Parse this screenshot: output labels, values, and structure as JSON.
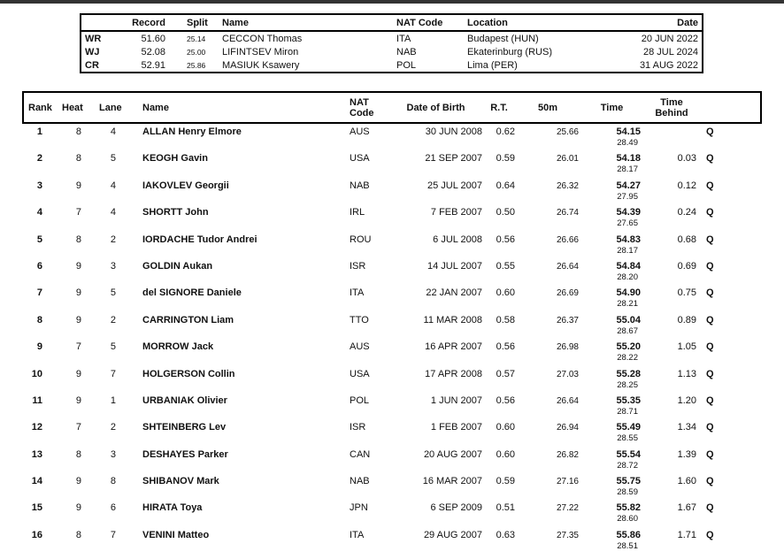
{
  "colors": {
    "top_bar": "#333333",
    "border": "#000000",
    "text": "#111111",
    "background": "#ffffff"
  },
  "records": {
    "headers": {
      "record": "Record",
      "split": "Split",
      "name": "Name",
      "nat": "NAT Code",
      "location": "Location",
      "date": "Date"
    },
    "rows": [
      {
        "tag": "WR",
        "record": "51.60",
        "split": "25.14",
        "name": "CECCON Thomas",
        "nat": "ITA",
        "location": "Budapest (HUN)",
        "date": "20 JUN 2022"
      },
      {
        "tag": "WJ",
        "record": "52.08",
        "split": "25.00",
        "name": "LIFINTSEV Miron",
        "nat": "NAB",
        "location": "Ekaterinburg (RUS)",
        "date": "28 JUL 2024"
      },
      {
        "tag": "CR",
        "record": "52.91",
        "split": "25.86",
        "name": "MASIUK Ksawery",
        "nat": "POL",
        "location": "Lima (PER)",
        "date": "31 AUG 2022"
      }
    ]
  },
  "results": {
    "headers": {
      "rank": "Rank",
      "heat": "Heat",
      "lane": "Lane",
      "name": "Name",
      "nat": "NAT\nCode",
      "dob": "Date of Birth",
      "rt": "R.T.",
      "m50": "50m",
      "time": "Time",
      "behind": "Time\nBehind"
    },
    "rows": [
      {
        "rank": "1",
        "heat": "8",
        "lane": "4",
        "name": "ALLAN Henry Elmore",
        "nat": "AUS",
        "dob": "30 JUN 2008",
        "rt": "0.62",
        "m50": "25.66",
        "time": "54.15",
        "sub": "28.49",
        "behind": "",
        "q": "Q"
      },
      {
        "rank": "2",
        "heat": "8",
        "lane": "5",
        "name": "KEOGH Gavin",
        "nat": "USA",
        "dob": "21 SEP 2007",
        "rt": "0.59",
        "m50": "26.01",
        "time": "54.18",
        "sub": "28.17",
        "behind": "0.03",
        "q": "Q"
      },
      {
        "rank": "3",
        "heat": "9",
        "lane": "4",
        "name": "IAKOVLEV Georgii",
        "nat": "NAB",
        "dob": "25 JUL 2007",
        "rt": "0.64",
        "m50": "26.32",
        "time": "54.27",
        "sub": "27.95",
        "behind": "0.12",
        "q": "Q"
      },
      {
        "rank": "4",
        "heat": "7",
        "lane": "4",
        "name": "SHORTT John",
        "nat": "IRL",
        "dob": "7 FEB 2007",
        "rt": "0.50",
        "m50": "26.74",
        "time": "54.39",
        "sub": "27.65",
        "behind": "0.24",
        "q": "Q"
      },
      {
        "rank": "5",
        "heat": "8",
        "lane": "2",
        "name": "IORDACHE Tudor Andrei",
        "nat": "ROU",
        "dob": "6 JUL 2008",
        "rt": "0.56",
        "m50": "26.66",
        "time": "54.83",
        "sub": "28.17",
        "behind": "0.68",
        "q": "Q"
      },
      {
        "rank": "6",
        "heat": "9",
        "lane": "3",
        "name": "GOLDIN Aukan",
        "nat": "ISR",
        "dob": "14 JUL 2007",
        "rt": "0.55",
        "m50": "26.64",
        "time": "54.84",
        "sub": "28.20",
        "behind": "0.69",
        "q": "Q"
      },
      {
        "rank": "7",
        "heat": "9",
        "lane": "5",
        "name": "del SIGNORE Daniele",
        "nat": "ITA",
        "dob": "22 JAN 2007",
        "rt": "0.60",
        "m50": "26.69",
        "time": "54.90",
        "sub": "28.21",
        "behind": "0.75",
        "q": "Q"
      },
      {
        "rank": "8",
        "heat": "9",
        "lane": "2",
        "name": "CARRINGTON Liam",
        "nat": "TTO",
        "dob": "11 MAR 2008",
        "rt": "0.58",
        "m50": "26.37",
        "time": "55.04",
        "sub": "28.67",
        "behind": "0.89",
        "q": "Q"
      },
      {
        "rank": "9",
        "heat": "7",
        "lane": "5",
        "name": "MORROW Jack",
        "nat": "AUS",
        "dob": "16 APR 2007",
        "rt": "0.56",
        "m50": "26.98",
        "time": "55.20",
        "sub": "28.22",
        "behind": "1.05",
        "q": "Q"
      },
      {
        "rank": "10",
        "heat": "9",
        "lane": "7",
        "name": "HOLGERSON Collin",
        "nat": "USA",
        "dob": "17 APR 2008",
        "rt": "0.57",
        "m50": "27.03",
        "time": "55.28",
        "sub": "28.25",
        "behind": "1.13",
        "q": "Q"
      },
      {
        "rank": "11",
        "heat": "9",
        "lane": "1",
        "name": "URBANIAK Olivier",
        "nat": "POL",
        "dob": "1 JUN 2007",
        "rt": "0.56",
        "m50": "26.64",
        "time": "55.35",
        "sub": "28.71",
        "behind": "1.20",
        "q": "Q"
      },
      {
        "rank": "12",
        "heat": "7",
        "lane": "2",
        "name": "SHTEINBERG Lev",
        "nat": "ISR",
        "dob": "1 FEB 2007",
        "rt": "0.60",
        "m50": "26.94",
        "time": "55.49",
        "sub": "28.55",
        "behind": "1.34",
        "q": "Q"
      },
      {
        "rank": "13",
        "heat": "8",
        "lane": "3",
        "name": "DESHAYES Parker",
        "nat": "CAN",
        "dob": "20 AUG 2007",
        "rt": "0.60",
        "m50": "26.82",
        "time": "55.54",
        "sub": "28.72",
        "behind": "1.39",
        "q": "Q"
      },
      {
        "rank": "14",
        "heat": "9",
        "lane": "8",
        "name": "SHIBANOV Mark",
        "nat": "NAB",
        "dob": "16 MAR 2007",
        "rt": "0.59",
        "m50": "27.16",
        "time": "55.75",
        "sub": "28.59",
        "behind": "1.60",
        "q": "Q"
      },
      {
        "rank": "15",
        "heat": "9",
        "lane": "6",
        "name": "HIRATA Toya",
        "nat": "JPN",
        "dob": "6 SEP 2009",
        "rt": "0.51",
        "m50": "27.22",
        "time": "55.82",
        "sub": "28.60",
        "behind": "1.67",
        "q": "Q"
      },
      {
        "rank": "16",
        "heat": "8",
        "lane": "7",
        "name": "VENINI Matteo",
        "nat": "ITA",
        "dob": "29 AUG 2007",
        "rt": "0.63",
        "m50": "27.35",
        "time": "55.86",
        "sub": "28.51",
        "behind": "1.71",
        "q": "Q"
      }
    ]
  }
}
